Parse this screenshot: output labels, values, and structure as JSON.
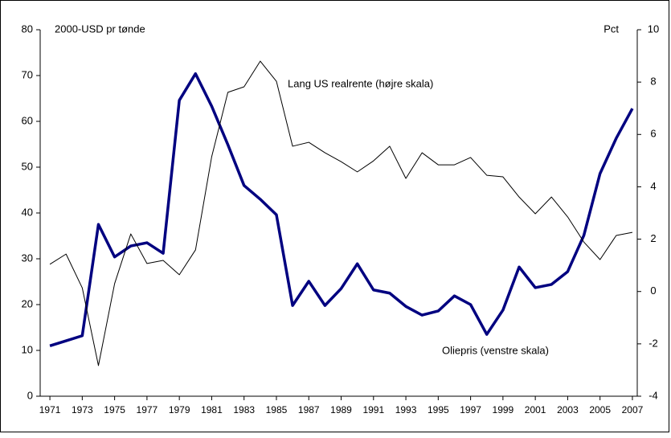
{
  "chart_data": {
    "type": "line",
    "y_label": "2000-USD pr tønde",
    "y2_label": "Pct",
    "annotations": [
      "Lang US realrente (højre skala)",
      "Oliepris (venstre skala)"
    ],
    "x": [
      1971,
      1972,
      1973,
      1974,
      1975,
      1976,
      1977,
      1978,
      1979,
      1980,
      1981,
      1982,
      1983,
      1984,
      1985,
      1986,
      1987,
      1988,
      1989,
      1990,
      1991,
      1992,
      1993,
      1994,
      1995,
      1996,
      1997,
      1998,
      1999,
      2000,
      2001,
      2002,
      2003,
      2004,
      2005,
      2006,
      2007
    ],
    "series": [
      {
        "name": "Oliepris (venstre skala)",
        "color": "#000080",
        "values": [
          11.0,
          12.1,
          13.2,
          37.5,
          30.4,
          32.8,
          33.5,
          31.2,
          64.6,
          70.4,
          63.3,
          54.9,
          46.0,
          43.0,
          39.6,
          19.8,
          25.1,
          19.8,
          23.5,
          28.9,
          23.2,
          22.5,
          19.6,
          17.7,
          18.6,
          21.9,
          20.0,
          13.5,
          18.8,
          28.2,
          23.7,
          24.4,
          27.2,
          35.1,
          48.6,
          56.3,
          62.8
        ]
      },
      {
        "name": "Lang US realrente (højre skala)",
        "color": "#000000",
        "axis": "y2",
        "values": [
          1.04,
          1.43,
          0.14,
          -2.83,
          0.3,
          2.2,
          1.07,
          1.19,
          0.64,
          1.59,
          5.15,
          7.61,
          7.82,
          8.8,
          8.03,
          5.55,
          5.7,
          5.3,
          4.96,
          4.57,
          4.99,
          5.55,
          4.32,
          5.3,
          4.84,
          4.84,
          5.12,
          4.44,
          4.38,
          3.61,
          2.97,
          3.61,
          2.85,
          1.89,
          1.22,
          2.14,
          2.26
        ]
      }
    ],
    "xlim": [
      1970.4,
      2007.3
    ],
    "xticks": [
      1971,
      1973,
      1975,
      1977,
      1979,
      1981,
      1983,
      1985,
      1987,
      1989,
      1991,
      1993,
      1995,
      1997,
      1999,
      2001,
      2003,
      2005,
      2007
    ],
    "ylim": [
      0,
      80
    ],
    "yticks": [
      0,
      10,
      20,
      30,
      40,
      50,
      60,
      70,
      80
    ],
    "y2lim": [
      -4,
      10
    ],
    "y2ticks": [
      -4,
      -2,
      0,
      2,
      4,
      6,
      8,
      10
    ],
    "grid": false
  }
}
